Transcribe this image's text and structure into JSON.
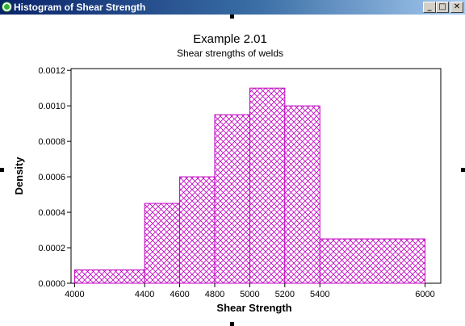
{
  "window": {
    "title": "Histogram of Shear Strength",
    "icon": "minitab-graph-icon",
    "buttons": {
      "minimize": "_",
      "maximize": "□",
      "close": "✕"
    }
  },
  "chart_data": {
    "type": "bar",
    "title": "Example 2.01",
    "subtitle": "Shear strengths of welds",
    "xlabel": "Shear Strength",
    "ylabel": "Density",
    "xlim": [
      3980,
      6090
    ],
    "ylim": [
      0,
      0.00121
    ],
    "xticks": [
      4000,
      4400,
      4600,
      4800,
      5000,
      5200,
      5400,
      6000
    ],
    "yticks": [
      0.0,
      0.0002,
      0.0004,
      0.0006,
      0.0008,
      0.001,
      0.0012
    ],
    "ytick_labels": [
      "0.0000",
      "0.0002",
      "0.0004",
      "0.0006",
      "0.0008",
      "0.0010",
      "0.0012"
    ],
    "bins": [
      {
        "start": 4000,
        "end": 4400,
        "density": 7.5e-05
      },
      {
        "start": 4400,
        "end": 4600,
        "density": 0.00045
      },
      {
        "start": 4600,
        "end": 4800,
        "density": 0.0006
      },
      {
        "start": 4800,
        "end": 5000,
        "density": 0.00095
      },
      {
        "start": 5000,
        "end": 5200,
        "density": 0.0011
      },
      {
        "start": 5200,
        "end": 5400,
        "density": 0.001
      },
      {
        "start": 5400,
        "end": 6000,
        "density": 0.00025
      }
    ],
    "bar_color": "#c000c0",
    "grid": false
  }
}
